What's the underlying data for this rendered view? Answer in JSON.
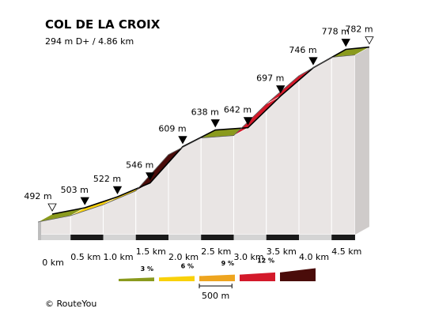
{
  "header": {
    "title": "COL DE LA CROIX",
    "subtitle": "294 m D+ / 4.86 km"
  },
  "chart_data": {
    "type": "area",
    "title": "COL DE LA CROIX",
    "subtitle": "294 m D+ / 4.86 km",
    "distance_unit": "km",
    "elevation_unit": "m",
    "points": [
      {
        "km": 0.0,
        "elev": 492,
        "label": "492 m",
        "marker": "start"
      },
      {
        "km": 0.5,
        "elev": 503,
        "label": "503 m",
        "marker": "point"
      },
      {
        "km": 1.0,
        "elev": 522,
        "label": "522 m",
        "marker": "point"
      },
      {
        "km": 1.5,
        "elev": 546,
        "label": "546 m",
        "marker": "point"
      },
      {
        "km": 2.0,
        "elev": 609,
        "label": "609 m",
        "marker": "point"
      },
      {
        "km": 2.5,
        "elev": 638,
        "label": "638 m",
        "marker": "point"
      },
      {
        "km": 3.0,
        "elev": 642,
        "label": "642 m",
        "marker": "point"
      },
      {
        "km": 3.5,
        "elev": 697,
        "label": "697 m",
        "marker": "point"
      },
      {
        "km": 4.0,
        "elev": 746,
        "label": "746 m",
        "marker": "point"
      },
      {
        "km": 4.5,
        "elev": 778,
        "label": "778 m",
        "marker": "point"
      },
      {
        "km": 4.86,
        "elev": 782,
        "label": "782 m",
        "marker": "end"
      }
    ],
    "segment_gradients": [
      2,
      4,
      5,
      13,
      6,
      1,
      11,
      10,
      6,
      1
    ],
    "x_ticks": [
      "0 km",
      "0.5 km",
      "1.0 km",
      "1.5 km",
      "2.0 km",
      "2.5 km",
      "3.0 km",
      "3.5 km",
      "4.0 km",
      "4.5 km"
    ],
    "legend": {
      "labels": [
        "3 %",
        "6 %",
        "9 %",
        "12 %"
      ],
      "colors": [
        "#8a9a1d",
        "#f9d10a",
        "#eea51f",
        "#d3192a",
        "#4a0c0a"
      ],
      "scale_label": "500 m"
    }
  },
  "colors": {
    "grade_0_3": "#8a9a1d",
    "grade_3_6": "#f9d10a",
    "grade_6_9": "#eea51f",
    "grade_9_12": "#d3192a",
    "grade_12_plus": "#4a0c0a",
    "wall": "#e9e5e4",
    "base": "#d4d4d4"
  },
  "credit": "© RouteYou"
}
